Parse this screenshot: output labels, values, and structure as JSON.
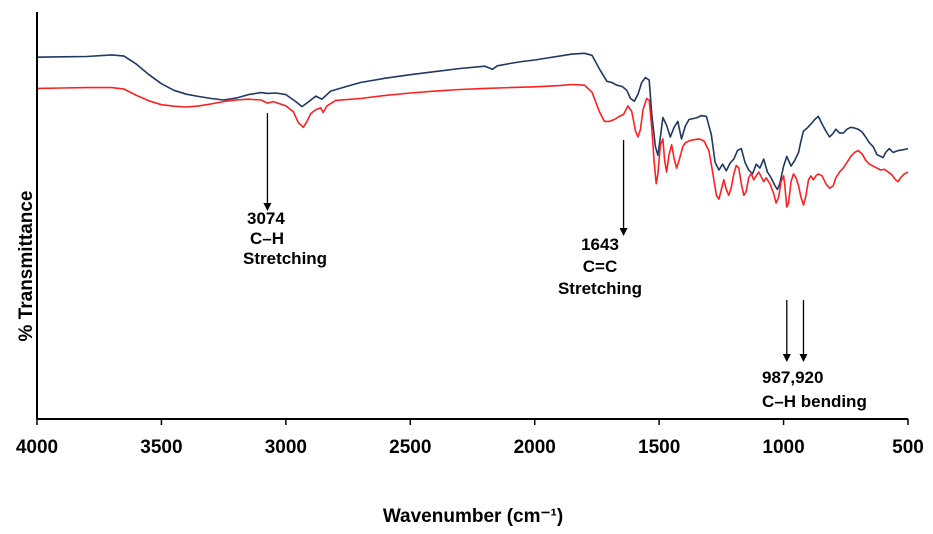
{
  "chart_data": {
    "type": "line",
    "xlabel": "Wavenumber (cm⁻¹)",
    "ylabel": "% Transmittance",
    "xlim": [
      4000,
      500
    ],
    "x_reversed": true,
    "x_ticks": [
      4000,
      3500,
      3000,
      2500,
      2000,
      1500,
      1000,
      500
    ],
    "y_ticks_shown": false,
    "grid": false,
    "series": [
      {
        "color": "#1f3864",
        "points": [
          [
            4000,
            93
          ],
          [
            3900,
            93.1
          ],
          [
            3800,
            93.2
          ],
          [
            3700,
            93.6
          ],
          [
            3650,
            93.3
          ],
          [
            3600,
            91.2
          ],
          [
            3550,
            88.5
          ],
          [
            3500,
            86.2
          ],
          [
            3450,
            84.5
          ],
          [
            3400,
            83.5
          ],
          [
            3350,
            82.9
          ],
          [
            3300,
            82.4
          ],
          [
            3250,
            82.0
          ],
          [
            3200,
            82.5
          ],
          [
            3150,
            83.4
          ],
          [
            3100,
            83.9
          ],
          [
            3074,
            83.7
          ],
          [
            3040,
            83.8
          ],
          [
            3000,
            83.4
          ],
          [
            2960,
            81.6
          ],
          [
            2935,
            80.3
          ],
          [
            2910,
            81.5
          ],
          [
            2880,
            83.0
          ],
          [
            2855,
            82.2
          ],
          [
            2820,
            84.3
          ],
          [
            2750,
            85.6
          ],
          [
            2700,
            86.5
          ],
          [
            2600,
            87.6
          ],
          [
            2500,
            88.5
          ],
          [
            2400,
            89.3
          ],
          [
            2300,
            90.1
          ],
          [
            2200,
            90.7
          ],
          [
            2170,
            89.9
          ],
          [
            2150,
            90.8
          ],
          [
            2100,
            91.4
          ],
          [
            2050,
            91.9
          ],
          [
            2000,
            92.3
          ],
          [
            1950,
            92.8
          ],
          [
            1900,
            93.3
          ],
          [
            1850,
            93.8
          ],
          [
            1800,
            94.0
          ],
          [
            1770,
            93.5
          ],
          [
            1740,
            90.0
          ],
          [
            1710,
            86.8
          ],
          [
            1690,
            86.5
          ],
          [
            1670,
            85.8
          ],
          [
            1650,
            85.5
          ],
          [
            1643,
            85.2
          ],
          [
            1630,
            84.5
          ],
          [
            1615,
            82.4
          ],
          [
            1600,
            81.7
          ],
          [
            1585,
            83.5
          ],
          [
            1570,
            86.5
          ],
          [
            1555,
            87.8
          ],
          [
            1540,
            87.1
          ],
          [
            1530,
            78.5
          ],
          [
            1515,
            70.0
          ],
          [
            1505,
            67.8
          ],
          [
            1495,
            72.5
          ],
          [
            1485,
            77.5
          ],
          [
            1470,
            75.5
          ],
          [
            1455,
            72.5
          ],
          [
            1440,
            75.0
          ],
          [
            1425,
            76.5
          ],
          [
            1410,
            72.0
          ],
          [
            1395,
            75.3
          ],
          [
            1380,
            77.0
          ],
          [
            1350,
            77.4
          ],
          [
            1330,
            78.0
          ],
          [
            1310,
            77.8
          ],
          [
            1290,
            73.0
          ],
          [
            1275,
            66.0
          ],
          [
            1260,
            64.0
          ],
          [
            1245,
            65.5
          ],
          [
            1230,
            63.8
          ],
          [
            1215,
            65.8
          ],
          [
            1200,
            66.8
          ],
          [
            1185,
            69.0
          ],
          [
            1170,
            69.5
          ],
          [
            1155,
            66.0
          ],
          [
            1140,
            64.0
          ],
          [
            1125,
            63.0
          ],
          [
            1110,
            65.5
          ],
          [
            1095,
            64.5
          ],
          [
            1080,
            66.8
          ],
          [
            1065,
            63.5
          ],
          [
            1050,
            62.0
          ],
          [
            1035,
            60.0
          ],
          [
            1025,
            59.0
          ],
          [
            1015,
            60.5
          ],
          [
            1000,
            65.0
          ],
          [
            987,
            67.5
          ],
          [
            970,
            65.0
          ],
          [
            955,
            66.5
          ],
          [
            940,
            68.5
          ],
          [
            930,
            71.5
          ],
          [
            920,
            74.0
          ],
          [
            905,
            74.8
          ],
          [
            890,
            75.8
          ],
          [
            875,
            77.0
          ],
          [
            860,
            77.8
          ],
          [
            845,
            75.8
          ],
          [
            830,
            74.0
          ],
          [
            815,
            72.5
          ],
          [
            800,
            73.5
          ],
          [
            790,
            74.5
          ],
          [
            775,
            73.5
          ],
          [
            760,
            73.5
          ],
          [
            745,
            74.5
          ],
          [
            730,
            75.0
          ],
          [
            715,
            74.8
          ],
          [
            700,
            74.5
          ],
          [
            685,
            73.8
          ],
          [
            670,
            72.5
          ],
          [
            655,
            71.0
          ],
          [
            640,
            70.0
          ],
          [
            625,
            68.0
          ],
          [
            610,
            67.5
          ],
          [
            600,
            67.2
          ],
          [
            590,
            68.5
          ],
          [
            575,
            69.5
          ],
          [
            560,
            68.5
          ],
          [
            540,
            69.0
          ],
          [
            520,
            69.2
          ],
          [
            500,
            69.5
          ]
        ]
      },
      {
        "color": "#ff2020",
        "points": [
          [
            4000,
            85
          ],
          [
            3900,
            85.1
          ],
          [
            3800,
            85.2
          ],
          [
            3700,
            85.2
          ],
          [
            3650,
            84.8
          ],
          [
            3600,
            83.2
          ],
          [
            3550,
            81.8
          ],
          [
            3500,
            80.8
          ],
          [
            3450,
            80.4
          ],
          [
            3400,
            80.2
          ],
          [
            3350,
            80.5
          ],
          [
            3300,
            81.0
          ],
          [
            3250,
            81.6
          ],
          [
            3200,
            82.0
          ],
          [
            3150,
            82.2
          ],
          [
            3100,
            82.0
          ],
          [
            3074,
            81.2
          ],
          [
            3050,
            81.6
          ],
          [
            3000,
            80.5
          ],
          [
            2970,
            79.0
          ],
          [
            2950,
            76.2
          ],
          [
            2930,
            75.0
          ],
          [
            2915,
            76.5
          ],
          [
            2900,
            78.5
          ],
          [
            2880,
            79.5
          ],
          [
            2860,
            80.0
          ],
          [
            2850,
            78.8
          ],
          [
            2835,
            80.5
          ],
          [
            2800,
            81.9
          ],
          [
            2700,
            82.4
          ],
          [
            2600,
            83.2
          ],
          [
            2500,
            83.8
          ],
          [
            2400,
            84.3
          ],
          [
            2300,
            84.7
          ],
          [
            2200,
            85.0
          ],
          [
            2100,
            85.2
          ],
          [
            2000,
            85.4
          ],
          [
            1900,
            85.7
          ],
          [
            1850,
            86.0
          ],
          [
            1800,
            85.8
          ],
          [
            1770,
            84.0
          ],
          [
            1740,
            79.0
          ],
          [
            1720,
            76.5
          ],
          [
            1700,
            76.5
          ],
          [
            1680,
            77.0
          ],
          [
            1660,
            77.8
          ],
          [
            1643,
            78.3
          ],
          [
            1625,
            80.5
          ],
          [
            1610,
            79.0
          ],
          [
            1595,
            74.0
          ],
          [
            1585,
            72.5
          ],
          [
            1575,
            74.5
          ],
          [
            1565,
            79.5
          ],
          [
            1550,
            82.4
          ],
          [
            1540,
            82.0
          ],
          [
            1530,
            75.0
          ],
          [
            1520,
            66.0
          ],
          [
            1512,
            60.5
          ],
          [
            1505,
            63.0
          ],
          [
            1495,
            70.5
          ],
          [
            1485,
            72.0
          ],
          [
            1478,
            66.5
          ],
          [
            1470,
            63.5
          ],
          [
            1460,
            68.0
          ],
          [
            1450,
            70.5
          ],
          [
            1440,
            67.0
          ],
          [
            1430,
            64.5
          ],
          [
            1420,
            66.5
          ],
          [
            1405,
            70.0
          ],
          [
            1395,
            71.0
          ],
          [
            1380,
            71.5
          ],
          [
            1360,
            71.8
          ],
          [
            1340,
            72.0
          ],
          [
            1320,
            71.5
          ],
          [
            1300,
            69.0
          ],
          [
            1285,
            63.5
          ],
          [
            1270,
            57.5
          ],
          [
            1260,
            56.5
          ],
          [
            1250,
            59.0
          ],
          [
            1240,
            61.5
          ],
          [
            1230,
            59.0
          ],
          [
            1220,
            57.5
          ],
          [
            1210,
            59.5
          ],
          [
            1200,
            63.0
          ],
          [
            1190,
            65.2
          ],
          [
            1180,
            64.5
          ],
          [
            1170,
            60.5
          ],
          [
            1160,
            57.5
          ],
          [
            1150,
            58.5
          ],
          [
            1140,
            62.0
          ],
          [
            1130,
            63.2
          ],
          [
            1120,
            61.5
          ],
          [
            1110,
            62.5
          ],
          [
            1100,
            63.5
          ],
          [
            1090,
            62.3
          ],
          [
            1080,
            61.0
          ],
          [
            1070,
            62.0
          ],
          [
            1055,
            60.5
          ],
          [
            1040,
            58.0
          ],
          [
            1030,
            55.5
          ],
          [
            1020,
            57.0
          ],
          [
            1010,
            61.0
          ],
          [
            1000,
            62.5
          ],
          [
            995,
            60.0
          ],
          [
            987,
            54.5
          ],
          [
            980,
            55.5
          ],
          [
            970,
            61.0
          ],
          [
            960,
            63.0
          ],
          [
            950,
            62.0
          ],
          [
            940,
            60.0
          ],
          [
            930,
            57.0
          ],
          [
            920,
            55.0
          ],
          [
            910,
            57.5
          ],
          [
            900,
            61.5
          ],
          [
            890,
            62.5
          ],
          [
            880,
            61.5
          ],
          [
            870,
            62.5
          ],
          [
            860,
            63.0
          ],
          [
            845,
            62.5
          ],
          [
            830,
            60.5
          ],
          [
            815,
            59.3
          ],
          [
            800,
            60.0
          ],
          [
            790,
            62.0
          ],
          [
            775,
            63.5
          ],
          [
            760,
            64.5
          ],
          [
            745,
            66.0
          ],
          [
            730,
            67.5
          ],
          [
            715,
            68.5
          ],
          [
            700,
            69.0
          ],
          [
            685,
            68.2
          ],
          [
            670,
            66.5
          ],
          [
            655,
            65.5
          ],
          [
            640,
            65.0
          ],
          [
            625,
            64.5
          ],
          [
            610,
            64.0
          ],
          [
            595,
            64.2
          ],
          [
            580,
            63.5
          ],
          [
            565,
            62.8
          ],
          [
            550,
            61.5
          ],
          [
            540,
            61.0
          ],
          [
            530,
            62.0
          ],
          [
            515,
            63.0
          ],
          [
            500,
            63.5
          ]
        ]
      }
    ],
    "annotations": [
      {
        "id": "a3074",
        "x": 3074,
        "lines": [
          "3074",
          "C–H",
          "Stretching"
        ]
      },
      {
        "id": "a1643",
        "x": 1643,
        "lines": [
          "1643",
          "C=C",
          "Stretching"
        ]
      },
      {
        "id": "a987",
        "x": 987,
        "x2": 920,
        "lines": [
          "987,920",
          "C–H bending"
        ]
      }
    ]
  }
}
